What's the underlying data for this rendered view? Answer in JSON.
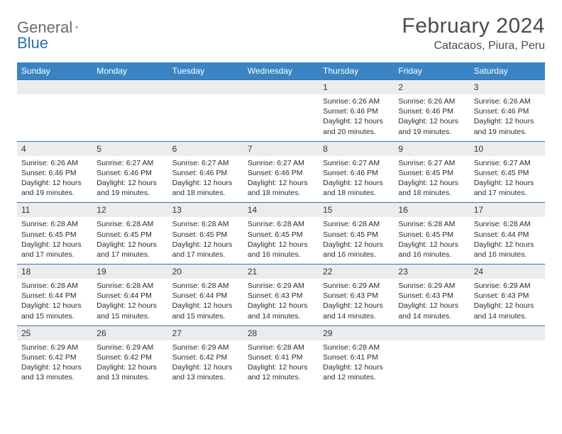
{
  "brand": {
    "word1": "General",
    "word2": "Blue"
  },
  "title": "February 2024",
  "location": "Catacaos, Piura, Peru",
  "colors": {
    "header_bg": "#3b84c4",
    "header_text": "#ffffff",
    "row_border": "#3b6fa3",
    "daynum_bg": "#ececec",
    "brand_gray": "#6a6a6a",
    "brand_blue": "#2f6fb0",
    "text": "#333333",
    "background": "#ffffff"
  },
  "typography": {
    "title_fontsize": 30,
    "location_fontsize": 16,
    "weekday_fontsize": 12,
    "daynum_fontsize": 12,
    "body_fontsize": 10.5
  },
  "weekdays": [
    "Sunday",
    "Monday",
    "Tuesday",
    "Wednesday",
    "Thursday",
    "Friday",
    "Saturday"
  ],
  "weeks": [
    [
      {
        "n": "",
        "sunrise": "",
        "sunset": "",
        "daylight": ""
      },
      {
        "n": "",
        "sunrise": "",
        "sunset": "",
        "daylight": ""
      },
      {
        "n": "",
        "sunrise": "",
        "sunset": "",
        "daylight": ""
      },
      {
        "n": "",
        "sunrise": "",
        "sunset": "",
        "daylight": ""
      },
      {
        "n": "1",
        "sunrise": "Sunrise: 6:26 AM",
        "sunset": "Sunset: 6:46 PM",
        "daylight": "Daylight: 12 hours and 20 minutes."
      },
      {
        "n": "2",
        "sunrise": "Sunrise: 6:26 AM",
        "sunset": "Sunset: 6:46 PM",
        "daylight": "Daylight: 12 hours and 19 minutes."
      },
      {
        "n": "3",
        "sunrise": "Sunrise: 6:26 AM",
        "sunset": "Sunset: 6:46 PM",
        "daylight": "Daylight: 12 hours and 19 minutes."
      }
    ],
    [
      {
        "n": "4",
        "sunrise": "Sunrise: 6:26 AM",
        "sunset": "Sunset: 6:46 PM",
        "daylight": "Daylight: 12 hours and 19 minutes."
      },
      {
        "n": "5",
        "sunrise": "Sunrise: 6:27 AM",
        "sunset": "Sunset: 6:46 PM",
        "daylight": "Daylight: 12 hours and 19 minutes."
      },
      {
        "n": "6",
        "sunrise": "Sunrise: 6:27 AM",
        "sunset": "Sunset: 6:46 PM",
        "daylight": "Daylight: 12 hours and 18 minutes."
      },
      {
        "n": "7",
        "sunrise": "Sunrise: 6:27 AM",
        "sunset": "Sunset: 6:46 PM",
        "daylight": "Daylight: 12 hours and 18 minutes."
      },
      {
        "n": "8",
        "sunrise": "Sunrise: 6:27 AM",
        "sunset": "Sunset: 6:46 PM",
        "daylight": "Daylight: 12 hours and 18 minutes."
      },
      {
        "n": "9",
        "sunrise": "Sunrise: 6:27 AM",
        "sunset": "Sunset: 6:45 PM",
        "daylight": "Daylight: 12 hours and 18 minutes."
      },
      {
        "n": "10",
        "sunrise": "Sunrise: 6:27 AM",
        "sunset": "Sunset: 6:45 PM",
        "daylight": "Daylight: 12 hours and 17 minutes."
      }
    ],
    [
      {
        "n": "11",
        "sunrise": "Sunrise: 6:28 AM",
        "sunset": "Sunset: 6:45 PM",
        "daylight": "Daylight: 12 hours and 17 minutes."
      },
      {
        "n": "12",
        "sunrise": "Sunrise: 6:28 AM",
        "sunset": "Sunset: 6:45 PM",
        "daylight": "Daylight: 12 hours and 17 minutes."
      },
      {
        "n": "13",
        "sunrise": "Sunrise: 6:28 AM",
        "sunset": "Sunset: 6:45 PM",
        "daylight": "Daylight: 12 hours and 17 minutes."
      },
      {
        "n": "14",
        "sunrise": "Sunrise: 6:28 AM",
        "sunset": "Sunset: 6:45 PM",
        "daylight": "Daylight: 12 hours and 16 minutes."
      },
      {
        "n": "15",
        "sunrise": "Sunrise: 6:28 AM",
        "sunset": "Sunset: 6:45 PM",
        "daylight": "Daylight: 12 hours and 16 minutes."
      },
      {
        "n": "16",
        "sunrise": "Sunrise: 6:28 AM",
        "sunset": "Sunset: 6:45 PM",
        "daylight": "Daylight: 12 hours and 16 minutes."
      },
      {
        "n": "17",
        "sunrise": "Sunrise: 6:28 AM",
        "sunset": "Sunset: 6:44 PM",
        "daylight": "Daylight: 12 hours and 16 minutes."
      }
    ],
    [
      {
        "n": "18",
        "sunrise": "Sunrise: 6:28 AM",
        "sunset": "Sunset: 6:44 PM",
        "daylight": "Daylight: 12 hours and 15 minutes."
      },
      {
        "n": "19",
        "sunrise": "Sunrise: 6:28 AM",
        "sunset": "Sunset: 6:44 PM",
        "daylight": "Daylight: 12 hours and 15 minutes."
      },
      {
        "n": "20",
        "sunrise": "Sunrise: 6:28 AM",
        "sunset": "Sunset: 6:44 PM",
        "daylight": "Daylight: 12 hours and 15 minutes."
      },
      {
        "n": "21",
        "sunrise": "Sunrise: 6:29 AM",
        "sunset": "Sunset: 6:43 PM",
        "daylight": "Daylight: 12 hours and 14 minutes."
      },
      {
        "n": "22",
        "sunrise": "Sunrise: 6:29 AM",
        "sunset": "Sunset: 6:43 PM",
        "daylight": "Daylight: 12 hours and 14 minutes."
      },
      {
        "n": "23",
        "sunrise": "Sunrise: 6:29 AM",
        "sunset": "Sunset: 6:43 PM",
        "daylight": "Daylight: 12 hours and 14 minutes."
      },
      {
        "n": "24",
        "sunrise": "Sunrise: 6:29 AM",
        "sunset": "Sunset: 6:43 PM",
        "daylight": "Daylight: 12 hours and 14 minutes."
      }
    ],
    [
      {
        "n": "25",
        "sunrise": "Sunrise: 6:29 AM",
        "sunset": "Sunset: 6:42 PM",
        "daylight": "Daylight: 12 hours and 13 minutes."
      },
      {
        "n": "26",
        "sunrise": "Sunrise: 6:29 AM",
        "sunset": "Sunset: 6:42 PM",
        "daylight": "Daylight: 12 hours and 13 minutes."
      },
      {
        "n": "27",
        "sunrise": "Sunrise: 6:29 AM",
        "sunset": "Sunset: 6:42 PM",
        "daylight": "Daylight: 12 hours and 13 minutes."
      },
      {
        "n": "28",
        "sunrise": "Sunrise: 6:28 AM",
        "sunset": "Sunset: 6:41 PM",
        "daylight": "Daylight: 12 hours and 12 minutes."
      },
      {
        "n": "29",
        "sunrise": "Sunrise: 6:28 AM",
        "sunset": "Sunset: 6:41 PM",
        "daylight": "Daylight: 12 hours and 12 minutes."
      },
      {
        "n": "",
        "sunrise": "",
        "sunset": "",
        "daylight": ""
      },
      {
        "n": "",
        "sunrise": "",
        "sunset": "",
        "daylight": ""
      }
    ]
  ]
}
